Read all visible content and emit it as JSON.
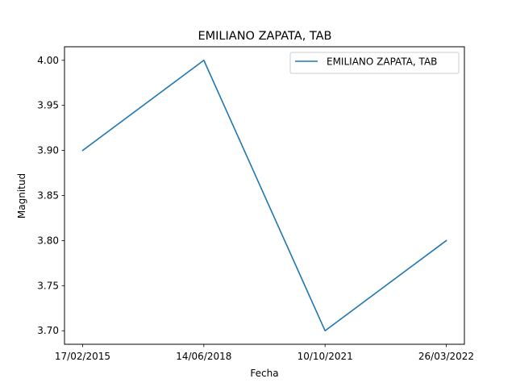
{
  "chart_data": {
    "type": "line",
    "title": "EMILIANO ZAPATA, TAB",
    "xlabel": "Fecha",
    "ylabel": "Magnitud",
    "categories": [
      "17/02/2015",
      "14/06/2018",
      "10/10/2021",
      "26/03/2022"
    ],
    "series": [
      {
        "name": "EMILIANO ZAPATA, TAB",
        "values": [
          3.9,
          4.0,
          3.7,
          3.8
        ],
        "color": "#1f77b4"
      }
    ],
    "ylim": [
      3.685,
      4.015
    ],
    "yticks": [
      "3.70",
      "3.75",
      "3.80",
      "3.85",
      "3.90",
      "3.95",
      "4.00"
    ],
    "grid": false,
    "legend_position": "top-right"
  }
}
